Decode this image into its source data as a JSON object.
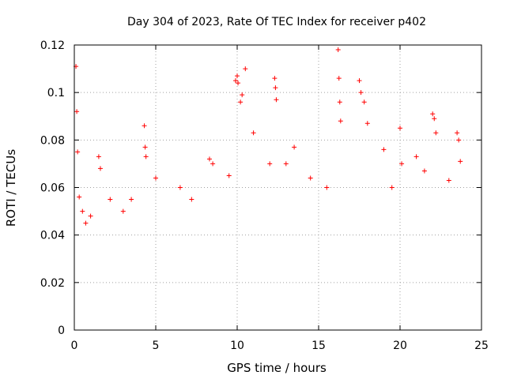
{
  "chart_data": {
    "type": "scatter",
    "title": "Day 304 of 2023, Rate Of TEC Index for receiver p402",
    "xlabel": "GPS time / hours",
    "ylabel": "ROTI / TECUs",
    "xlim": [
      0,
      25
    ],
    "ylim": [
      0,
      0.12
    ],
    "x_ticks": [
      "0",
      "5",
      "10",
      "15",
      "20",
      "25"
    ],
    "y_ticks": [
      "0",
      "0.02",
      "0.04",
      "0.06",
      "0.08",
      "0.1",
      "0.12"
    ],
    "grid": true,
    "marker": "+",
    "color": "#ff0000",
    "series": [
      {
        "x": [
          0.1,
          0.15,
          0.2,
          0.3,
          0.5,
          0.7,
          1.0,
          1.5,
          1.6,
          2.2,
          3.0,
          3.5,
          4.3,
          4.35,
          4.4,
          5.0,
          6.5,
          7.2,
          8.3,
          8.5,
          9.5,
          9.9,
          10.0,
          10.05,
          10.2,
          10.3,
          10.5,
          11.0,
          12.0,
          12.3,
          12.35,
          12.4,
          13.0,
          13.5,
          14.5,
          15.5,
          16.2,
          16.25,
          16.3,
          16.35,
          17.5,
          17.6,
          17.8,
          18.0,
          19.0,
          19.5,
          20.0,
          20.1,
          21.0,
          21.5,
          22.0,
          22.1,
          22.2,
          23.0,
          23.5,
          23.6,
          23.7
        ],
        "y": [
          0.111,
          0.092,
          0.075,
          0.056,
          0.05,
          0.045,
          0.048,
          0.073,
          0.068,
          0.055,
          0.05,
          0.055,
          0.086,
          0.077,
          0.073,
          0.064,
          0.06,
          0.055,
          0.072,
          0.07,
          0.065,
          0.105,
          0.107,
          0.104,
          0.096,
          0.099,
          0.11,
          0.083,
          0.07,
          0.106,
          0.102,
          0.097,
          0.07,
          0.077,
          0.064,
          0.06,
          0.118,
          0.106,
          0.096,
          0.088,
          0.105,
          0.1,
          0.096,
          0.087,
          0.076,
          0.06,
          0.085,
          0.07,
          0.073,
          0.067,
          0.091,
          0.089,
          0.083,
          0.063,
          0.083,
          0.08,
          0.071
        ]
      }
    ]
  }
}
